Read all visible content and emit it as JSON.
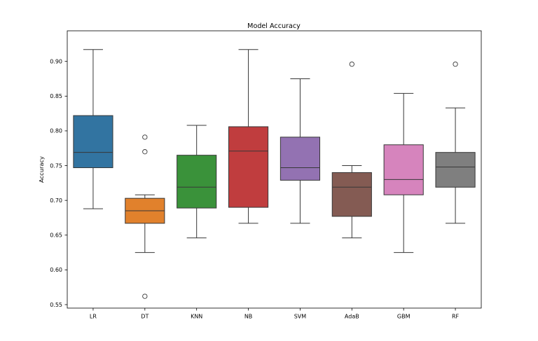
{
  "chart_data": {
    "type": "boxplot",
    "title": "Model Accuracy",
    "ylabel": "Accuracy",
    "xlabel": "",
    "ylim": [
      0.545,
      0.944
    ],
    "yticks": [
      0.55,
      0.6,
      0.65,
      0.7,
      0.75,
      0.8,
      0.85,
      0.9
    ],
    "ytick_format_decimals": 2,
    "grid": false,
    "legend": "none",
    "categories": [
      "LR",
      "DT",
      "KNN",
      "NB",
      "SVM",
      "AdaB",
      "GBM",
      "RF"
    ],
    "series": [
      {
        "name": "LR",
        "whislo": 0.688,
        "q1": 0.747,
        "med": 0.769,
        "q3": 0.822,
        "whishi": 0.917,
        "outliers": [],
        "color": "#3274A1"
      },
      {
        "name": "DT",
        "whislo": 0.625,
        "q1": 0.667,
        "med": 0.685,
        "q3": 0.703,
        "whishi": 0.708,
        "outliers": [
          0.791,
          0.77,
          0.562
        ],
        "color": "#E1812C"
      },
      {
        "name": "KNN",
        "whislo": 0.646,
        "q1": 0.689,
        "med": 0.719,
        "q3": 0.765,
        "whishi": 0.808,
        "outliers": [],
        "color": "#3A923A"
      },
      {
        "name": "NB",
        "whislo": 0.667,
        "q1": 0.69,
        "med": 0.771,
        "q3": 0.806,
        "whishi": 0.917,
        "outliers": [],
        "color": "#C03D3E"
      },
      {
        "name": "SVM",
        "whislo": 0.667,
        "q1": 0.729,
        "med": 0.747,
        "q3": 0.791,
        "whishi": 0.875,
        "outliers": [],
        "color": "#9372B2"
      },
      {
        "name": "AdaB",
        "whislo": 0.646,
        "q1": 0.677,
        "med": 0.719,
        "q3": 0.74,
        "whishi": 0.75,
        "outliers": [
          0.896
        ],
        "color": "#845B53"
      },
      {
        "name": "GBM",
        "whislo": 0.625,
        "q1": 0.708,
        "med": 0.73,
        "q3": 0.78,
        "whishi": 0.854,
        "outliers": [],
        "color": "#D684BD"
      },
      {
        "name": "RF",
        "whislo": 0.667,
        "q1": 0.719,
        "med": 0.748,
        "q3": 0.769,
        "whishi": 0.833,
        "outliers": [
          0.896
        ],
        "color": "#7F7F7F"
      }
    ]
  }
}
